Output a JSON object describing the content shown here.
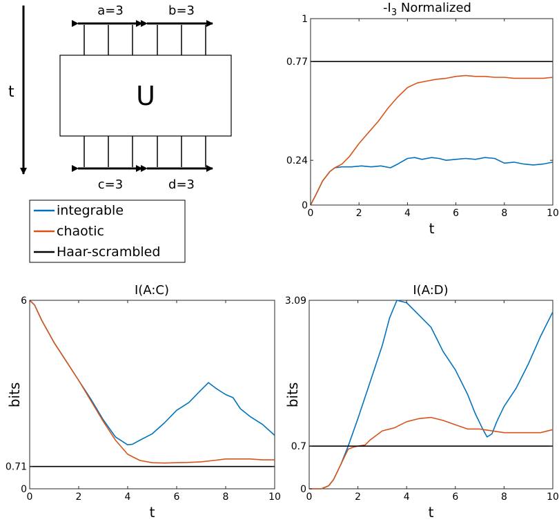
{
  "diagram": {
    "time_label": "t",
    "gate_label": "U",
    "top_left_label": "a=3",
    "top_right_label": "b=3",
    "bottom_left_label": "c=3",
    "bottom_right_label": "d=3"
  },
  "legend": {
    "entries": [
      {
        "label": "integrable",
        "color": "#0072BD"
      },
      {
        "label": "chaotic",
        "color": "#D95319"
      },
      {
        "label": "Haar-scrambled",
        "color": "#000000"
      }
    ]
  },
  "chart_data": [
    {
      "type": "line",
      "title_main": "-I",
      "title_sub": "3",
      "title_rest": " Normalized",
      "xlabel": "t",
      "ylabel": "",
      "xlim": [
        0,
        10
      ],
      "ylim": [
        0,
        1
      ],
      "xticks": [
        0,
        2,
        4,
        6,
        8,
        10
      ],
      "yticks": [
        0,
        0.24,
        0.77,
        1
      ],
      "ytick_labels": [
        "0",
        "0.24",
        "0.77",
        "1"
      ],
      "series": [
        {
          "name": "integrable",
          "color": "#0072BD",
          "x": [
            0,
            0.2,
            0.5,
            0.8,
            1.0,
            1.3,
            1.7,
            2.1,
            2.5,
            2.9,
            3.3,
            3.6,
            4.0,
            4.3,
            4.6,
            5.0,
            5.3,
            5.6,
            6.0,
            6.4,
            6.8,
            7.2,
            7.6,
            8.0,
            8.4,
            8.8,
            9.2,
            9.6,
            10.0
          ],
          "y": [
            0,
            0.05,
            0.13,
            0.18,
            0.2,
            0.205,
            0.205,
            0.21,
            0.205,
            0.21,
            0.2,
            0.22,
            0.25,
            0.255,
            0.245,
            0.255,
            0.25,
            0.24,
            0.245,
            0.25,
            0.245,
            0.255,
            0.25,
            0.225,
            0.23,
            0.22,
            0.215,
            0.22,
            0.23
          ]
        },
        {
          "name": "chaotic",
          "color": "#D95319",
          "x": [
            0,
            0.2,
            0.5,
            0.8,
            1.0,
            1.3,
            1.6,
            2.0,
            2.4,
            2.8,
            3.2,
            3.6,
            4.0,
            4.4,
            4.8,
            5.2,
            5.6,
            6.0,
            6.4,
            6.8,
            7.2,
            7.6,
            8.0,
            8.4,
            8.8,
            9.2,
            9.6,
            10.0
          ],
          "y": [
            0,
            0.05,
            0.13,
            0.18,
            0.2,
            0.22,
            0.26,
            0.33,
            0.39,
            0.45,
            0.52,
            0.58,
            0.63,
            0.655,
            0.665,
            0.675,
            0.68,
            0.69,
            0.695,
            0.69,
            0.69,
            0.685,
            0.685,
            0.68,
            0.68,
            0.68,
            0.68,
            0.685
          ]
        },
        {
          "name": "Haar-scrambled",
          "color": "#000000",
          "x": [
            0,
            10
          ],
          "y": [
            0.77,
            0.77
          ]
        }
      ]
    },
    {
      "type": "line",
      "title": "I(A:C)",
      "xlabel": "t",
      "ylabel": "bits",
      "xlim": [
        0,
        10
      ],
      "ylim": [
        0,
        6
      ],
      "xticks": [
        0,
        2,
        4,
        6,
        8,
        10
      ],
      "yticks": [
        0,
        0.71,
        6
      ],
      "ytick_labels": [
        "0",
        "0.71",
        "6"
      ],
      "series": [
        {
          "name": "integrable",
          "color": "#0072BD",
          "x": [
            0,
            0.2,
            0.5,
            1.0,
            1.5,
            2.0,
            2.5,
            3.0,
            3.5,
            4.0,
            4.2,
            4.5,
            5.0,
            5.5,
            6.0,
            6.5,
            7.0,
            7.3,
            7.6,
            7.8,
            8.0,
            8.3,
            8.6,
            9.0,
            9.5,
            10.0
          ],
          "y": [
            6,
            5.85,
            5.35,
            4.65,
            4.05,
            3.45,
            2.85,
            2.2,
            1.65,
            1.4,
            1.42,
            1.55,
            1.75,
            2.1,
            2.5,
            2.75,
            3.15,
            3.38,
            3.2,
            3.1,
            3.0,
            2.9,
            2.55,
            2.3,
            2.05,
            1.7
          ]
        },
        {
          "name": "chaotic",
          "color": "#D95319",
          "x": [
            0,
            0.2,
            0.5,
            1.0,
            1.5,
            2.0,
            2.5,
            3.0,
            3.5,
            4.0,
            4.5,
            5.0,
            5.5,
            6.0,
            6.5,
            7.0,
            7.5,
            8.0,
            8.5,
            9.0,
            9.5,
            10.0
          ],
          "y": [
            6,
            5.85,
            5.35,
            4.65,
            4.05,
            3.45,
            2.8,
            2.15,
            1.55,
            1.1,
            0.9,
            0.83,
            0.82,
            0.83,
            0.84,
            0.86,
            0.9,
            0.95,
            0.95,
            0.95,
            0.92,
            0.92
          ]
        },
        {
          "name": "Haar-scrambled",
          "color": "#000000",
          "x": [
            0,
            10
          ],
          "y": [
            0.71,
            0.71
          ]
        }
      ]
    },
    {
      "type": "line",
      "title": "I(A:D)",
      "xlabel": "t",
      "ylabel": "bits",
      "xlim": [
        0,
        10
      ],
      "ylim": [
        0,
        3.09
      ],
      "xticks": [
        0,
        2,
        4,
        6,
        8,
        10
      ],
      "yticks": [
        0,
        0.7,
        3.09
      ],
      "ytick_labels": [
        "0",
        "0.7",
        "3.09"
      ],
      "series": [
        {
          "name": "integrable",
          "color": "#0072BD",
          "x": [
            0,
            0.5,
            0.8,
            1.0,
            1.3,
            1.6,
            2.0,
            2.5,
            3.0,
            3.3,
            3.6,
            4.0,
            4.5,
            5.0,
            5.5,
            6.0,
            6.5,
            6.8,
            7.1,
            7.3,
            7.5,
            7.7,
            8.0,
            8.5,
            9.0,
            9.5,
            10.0
          ],
          "y": [
            0,
            0,
            0.05,
            0.15,
            0.4,
            0.7,
            1.15,
            1.75,
            2.35,
            2.8,
            3.09,
            3.05,
            2.85,
            2.65,
            2.25,
            1.95,
            1.55,
            1.25,
            1.0,
            0.85,
            0.9,
            1.1,
            1.35,
            1.65,
            2.05,
            2.5,
            2.9
          ]
        },
        {
          "name": "chaotic",
          "color": "#D95319",
          "x": [
            0,
            0.5,
            0.8,
            1.0,
            1.3,
            1.6,
            1.8,
            2.0,
            2.3,
            2.5,
            3.0,
            3.5,
            4.0,
            4.5,
            5.0,
            5.5,
            6.0,
            6.5,
            7.0,
            7.5,
            8.0,
            8.5,
            9.0,
            9.5,
            10.0
          ],
          "y": [
            0,
            0,
            0.05,
            0.15,
            0.4,
            0.65,
            0.68,
            0.7,
            0.72,
            0.8,
            0.95,
            1.0,
            1.1,
            1.15,
            1.17,
            1.12,
            1.05,
            0.98,
            0.98,
            0.95,
            0.92,
            0.92,
            0.92,
            0.92,
            0.97
          ]
        },
        {
          "name": "Haar-scrambled",
          "color": "#000000",
          "x": [
            0,
            10
          ],
          "y": [
            0.7,
            0.7
          ]
        }
      ]
    }
  ]
}
